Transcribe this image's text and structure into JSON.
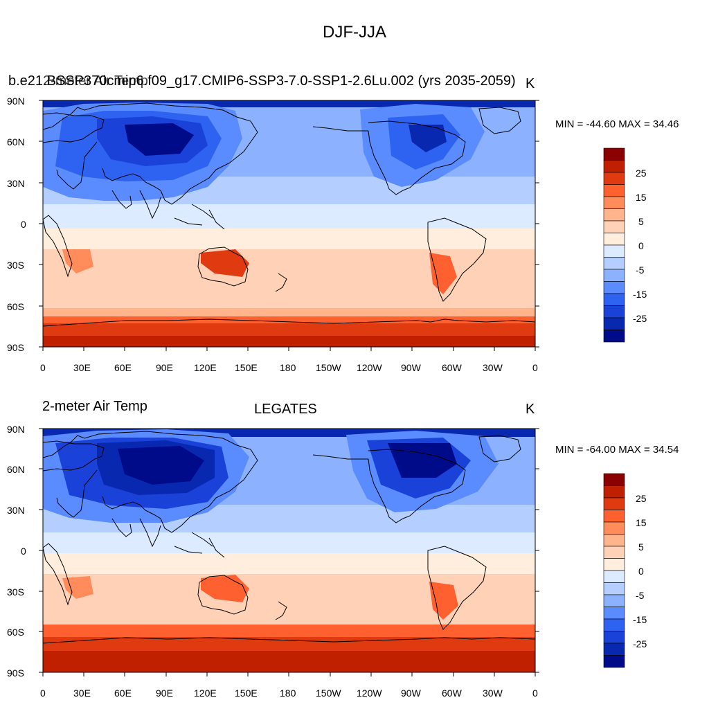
{
  "title": "DJF-JJA",
  "panels": [
    {
      "left_label": "2-meter Air Temp",
      "center_label": "b.e21.BSSP370cmip6.f09_g17.CMIP6-SSP3-7.0-SSP1-2.6Lu.002 (yrs 2035-2059)",
      "right_label": "K",
      "minmax": "MIN = -44.60 MAX =  34.46",
      "lat_labels": [
        "90N",
        "60N",
        "30N",
        "0",
        "30S",
        "60S",
        "90S"
      ],
      "lon_labels": [
        "0",
        "30E",
        "60E",
        "90E",
        "120E",
        "150E",
        "180",
        "150W",
        "120W",
        "90W",
        "60W",
        "30W",
        "0"
      ]
    },
    {
      "left_label": "2-meter Air Temp",
      "center_label": "LEGATES",
      "right_label": "K",
      "minmax": "MIN = -64.00 MAX =  34.54",
      "lat_labels": [
        "90N",
        "60N",
        "30N",
        "0",
        "30S",
        "60S",
        "90S"
      ],
      "lon_labels": [
        "0",
        "30E",
        "60E",
        "90E",
        "120E",
        "150E",
        "180",
        "150W",
        "120W",
        "90W",
        "60W",
        "30W",
        "0"
      ]
    }
  ],
  "colorbar": {
    "labels": [
      "25",
      "15",
      "5",
      "0",
      "-5",
      "-15",
      "-25"
    ],
    "colors": [
      "#8b0000",
      "#c02000",
      "#e03a10",
      "#ff6030",
      "#ff8c5a",
      "#ffb48c",
      "#ffd2b8",
      "#ffeede",
      "#dcebff",
      "#b4cfff",
      "#8cb2ff",
      "#5a8cff",
      "#2e62f0",
      "#1a42d8",
      "#0828b0",
      "#000b8a"
    ]
  }
}
